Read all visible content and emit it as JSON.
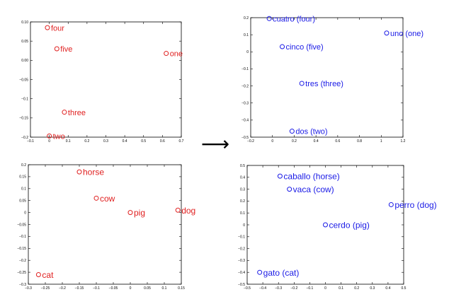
{
  "arrow": "⟶",
  "chart_data": [
    {
      "type": "scatter",
      "color": "#e02020",
      "xlim": [
        -0.1,
        0.7
      ],
      "ylim": [
        -0.2,
        0.1
      ],
      "xticks": [
        -0.1,
        0,
        0.1,
        0.2,
        0.3,
        0.4,
        0.5,
        0.6,
        0.7
      ],
      "yticks": [
        -0.2,
        -0.15,
        -0.1,
        -0.05,
        0,
        0.05,
        0.1
      ],
      "xtick_labels": [
        "−0.1",
        "0",
        "0.1",
        "0.2",
        "0.3",
        "0.4",
        "0.5",
        "0.6",
        "0.7"
      ],
      "ytick_labels": [
        "−0.2",
        "−0.15",
        "−0.1",
        "−0.05",
        "0.00",
        "0.05",
        "0.10"
      ],
      "points": [
        {
          "label": "four",
          "x": -0.01,
          "y": 0.085
        },
        {
          "label": "five",
          "x": 0.04,
          "y": 0.03
        },
        {
          "label": "one",
          "x": 0.62,
          "y": 0.018
        },
        {
          "label": "three",
          "x": 0.08,
          "y": -0.135
        },
        {
          "label": "two",
          "x": 0.0,
          "y": -0.197
        }
      ]
    },
    {
      "type": "scatter",
      "color": "#1a1ae6",
      "xlim": [
        -0.2,
        1.2
      ],
      "ylim": [
        -0.5,
        0.2
      ],
      "xticks": [
        -0.2,
        0,
        0.2,
        0.4,
        0.6,
        0.8,
        1,
        1.2
      ],
      "yticks": [
        -0.5,
        -0.4,
        -0.3,
        -0.2,
        -0.1,
        0,
        0.1,
        0.2
      ],
      "xtick_labels": [
        "−0.2",
        "0",
        "0.2",
        "0.4",
        "0.6",
        "0.8",
        "1",
        "1.2"
      ],
      "ytick_labels": [
        "−0.5",
        "−0.4",
        "−0.3",
        "−0.2",
        "−0.1",
        "0",
        "0.1",
        "0.2"
      ],
      "points": [
        {
          "label": "cuatro (four)",
          "x": -0.03,
          "y": 0.195
        },
        {
          "label": "uno (one)",
          "x": 1.05,
          "y": 0.11
        },
        {
          "label": "cinco (five)",
          "x": 0.09,
          "y": 0.03
        },
        {
          "label": "tres (three)",
          "x": 0.27,
          "y": -0.185
        },
        {
          "label": "dos (two)",
          "x": 0.18,
          "y": -0.465
        }
      ]
    },
    {
      "type": "scatter",
      "color": "#e02020",
      "xlim": [
        -0.3,
        0.15
      ],
      "ylim": [
        -0.3,
        0.2
      ],
      "xticks": [
        -0.3,
        -0.25,
        -0.2,
        -0.15,
        -0.1,
        -0.05,
        0,
        0.05,
        0.1,
        0.15
      ],
      "yticks": [
        -0.3,
        -0.25,
        -0.2,
        -0.15,
        -0.1,
        -0.05,
        0,
        0.05,
        0.1,
        0.15,
        0.2
      ],
      "xtick_labels": [
        "−0.3",
        "−0.25",
        "−0.2",
        "−0.15",
        "−0.1",
        "−0.05",
        "0",
        "0.05",
        "0.1",
        "0.15"
      ],
      "ytick_labels": [
        "−0.3",
        "−0.25",
        "−0.2",
        "−0.15",
        "−0.1",
        "−0.05",
        "0",
        "0.05",
        "0.1",
        "0.15",
        "0.2"
      ],
      "points": [
        {
          "label": "horse",
          "x": -0.15,
          "y": 0.17
        },
        {
          "label": "cow",
          "x": -0.1,
          "y": 0.06
        },
        {
          "label": "pig",
          "x": 0.0,
          "y": 0.0
        },
        {
          "label": "dog",
          "x": 0.14,
          "y": 0.01
        },
        {
          "label": "cat",
          "x": -0.27,
          "y": -0.26
        }
      ]
    },
    {
      "type": "scatter",
      "color": "#1a1ae6",
      "xlim": [
        -0.5,
        0.5
      ],
      "ylim": [
        -0.5,
        0.5
      ],
      "xticks": [
        -0.5,
        -0.4,
        -0.3,
        -0.2,
        -0.1,
        0,
        0.1,
        0.2,
        0.3,
        0.4,
        0.5
      ],
      "yticks": [
        -0.5,
        -0.4,
        -0.3,
        -0.2,
        -0.1,
        0,
        0.1,
        0.2,
        0.3,
        0.4,
        0.5
      ],
      "xtick_labels": [
        "−0.5",
        "−0.4",
        "−0.3",
        "−0.2",
        "−0.1",
        "0",
        "0.1",
        "0.2",
        "0.3",
        "0.4",
        "0.5"
      ],
      "ytick_labels": [
        "−0.5",
        "−0.4",
        "−0.3",
        "−0.2",
        "−0.1",
        "0",
        "0.1",
        "0.2",
        "0.3",
        "0.4",
        "0.5"
      ],
      "points": [
        {
          "label": "caballo (horse)",
          "x": -0.29,
          "y": 0.41
        },
        {
          "label": "vaca (cow)",
          "x": -0.23,
          "y": 0.3
        },
        {
          "label": "perro (dog)",
          "x": 0.42,
          "y": 0.17
        },
        {
          "label": "cerdo (pig)",
          "x": 0.0,
          "y": 0.0
        },
        {
          "label": "gato (cat)",
          "x": -0.42,
          "y": -0.4
        }
      ]
    }
  ]
}
